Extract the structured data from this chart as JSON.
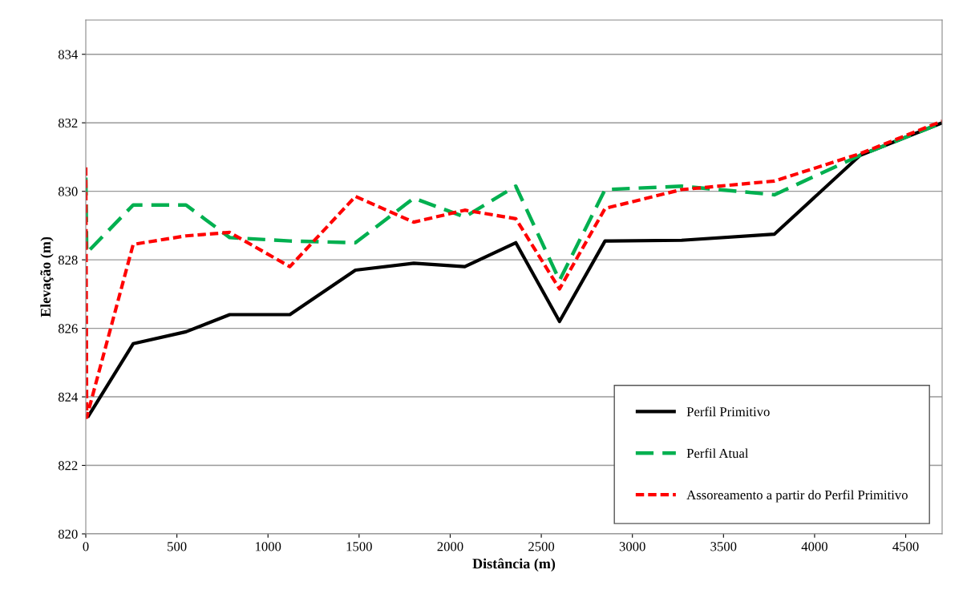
{
  "chart_data": {
    "type": "line",
    "xlabel": "Distância (m)",
    "ylabel": "Elevação (m)",
    "xlim": [
      0,
      4700
    ],
    "xticks": [
      0,
      500,
      1000,
      1500,
      2000,
      2500,
      3000,
      3500,
      4000,
      4500
    ],
    "ylim": [
      820,
      835
    ],
    "yticks": [
      820,
      822,
      824,
      826,
      828,
      830,
      832,
      834
    ],
    "grid": "y",
    "legend": "bottom right",
    "marker": "none",
    "series": [
      {
        "name": "Perfil Primitivo",
        "color": "#000000",
        "line_style": "solid",
        "x": [
          10,
          260,
          550,
          790,
          1120,
          1480,
          1800,
          2080,
          2360,
          2600,
          2850,
          3270,
          3780,
          4250,
          4700
        ],
        "values": [
          823.4,
          825.55,
          825.9,
          826.4,
          826.4,
          827.7,
          827.9,
          827.8,
          828.5,
          826.2,
          828.55,
          828.57,
          828.75,
          831.05,
          832.0
        ]
      },
      {
        "name": "Perfil Atual",
        "color": "#00b050",
        "line_style": "dashed",
        "x": [
          0,
          5,
          260,
          550,
          790,
          1120,
          1480,
          1800,
          2080,
          2360,
          2600,
          2850,
          3270,
          3780,
          4250,
          4700
        ],
        "values": [
          830.4,
          828.2,
          829.6,
          829.6,
          828.65,
          828.55,
          828.5,
          829.8,
          829.25,
          830.15,
          827.4,
          830.05,
          830.15,
          829.9,
          831.05,
          832.0
        ]
      },
      {
        "name": "Assoreamento a partir do Perfil Primitivo",
        "color": "#ff0000",
        "line_style": "dotted",
        "x": [
          0,
          5,
          260,
          550,
          790,
          1120,
          1480,
          1800,
          2080,
          2360,
          2600,
          2850,
          3270,
          3780,
          4250,
          4700
        ],
        "values": [
          830.7,
          823.4,
          828.45,
          828.7,
          828.8,
          827.8,
          829.85,
          829.1,
          829.45,
          829.2,
          827.15,
          829.5,
          830.05,
          830.3,
          831.1,
          832.05
        ]
      }
    ]
  }
}
